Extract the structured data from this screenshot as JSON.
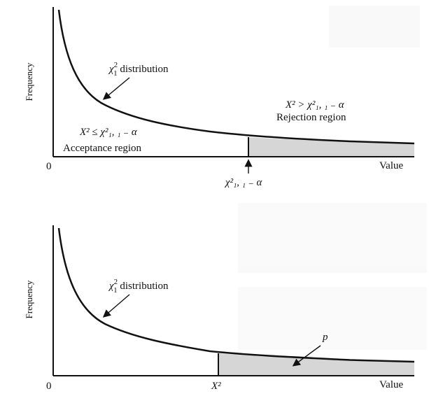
{
  "top_panel": {
    "y_axis_label": "Frequency",
    "x_axis_label": "Value",
    "origin_label": "0",
    "curve_label_prefix": "χ",
    "curve_label_sup": "2",
    "curve_label_sub": "1",
    "curve_label_suffix": " distribution",
    "acceptance_condition": "X² ≤ χ²₁, ₁ ₋ α",
    "acceptance_label": "Acceptance region",
    "rejection_condition": "X² > χ²₁, ₁ ₋ α",
    "rejection_label": "Rejection region",
    "critical_value_label": "χ²₁, ₁ ₋ α"
  },
  "bottom_panel": {
    "y_axis_label": "Frequency",
    "x_axis_label": "Value",
    "origin_label": "0",
    "curve_label_prefix": "χ",
    "curve_label_sup": "2",
    "curve_label_sub": "1",
    "curve_label_suffix": " distribution",
    "statistic_label": "X²",
    "p_label": "p"
  },
  "colors": {
    "curve": "#111111",
    "shade": "#d6d6d6",
    "axis": "#111111"
  }
}
